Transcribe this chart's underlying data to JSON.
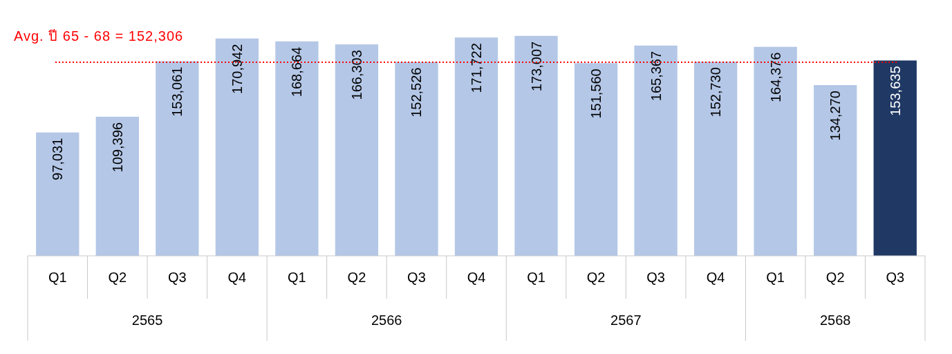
{
  "chart_data": {
    "type": "bar",
    "categories": [
      "Q1",
      "Q2",
      "Q3",
      "Q4",
      "Q1",
      "Q2",
      "Q3",
      "Q4",
      "Q1",
      "Q2",
      "Q3",
      "Q4",
      "Q1",
      "Q2",
      "Q3"
    ],
    "values": [
      97031,
      109396,
      153061,
      170942,
      168664,
      166303,
      152526,
      171722,
      173007,
      151560,
      165367,
      152730,
      164376,
      134270,
      153635
    ],
    "colors": [
      "#b4c7e7",
      "#b4c7e7",
      "#b4c7e7",
      "#b4c7e7",
      "#b4c7e7",
      "#b4c7e7",
      "#b4c7e7",
      "#b4c7e7",
      "#b4c7e7",
      "#b4c7e7",
      "#b4c7e7",
      "#b4c7e7",
      "#b4c7e7",
      "#b4c7e7",
      "#1f3864"
    ],
    "value_labels": [
      "97,031",
      "109,396",
      "153,061",
      "170,942",
      "168,664",
      "166,303",
      "152,526",
      "171,722",
      "173,007",
      "151,560",
      "165,367",
      "152,730",
      "164,376",
      "134,270",
      "153,635"
    ],
    "ref_lines": [
      {
        "axis": "y",
        "value": 152306,
        "label": "Avg. ปี 65 - 68 = 152,306",
        "color": "#ff0000",
        "line_style": "dotted"
      }
    ],
    "annotations": [
      "2565",
      "2566",
      "2567",
      "2568"
    ]
  }
}
